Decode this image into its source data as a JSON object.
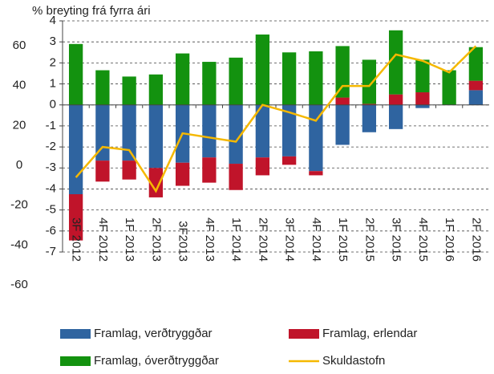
{
  "chart_data": {
    "type": "bar",
    "stacked": true,
    "title": "% breyting frá fyrra ári",
    "categories": [
      "3F 2012",
      "4F 2012",
      "1F 2013",
      "2F 2013",
      "3F2013",
      "4F 2013",
      "1F 2014",
      "2F 2014",
      "3F 2014",
      "4F 2014",
      "1F 2015",
      "2F 2015",
      "3F 2015",
      "4F 2015",
      "1F 2016",
      "2F 2016"
    ],
    "series": [
      {
        "name": "Framlag, verðtryggðar",
        "color": "#2f64a0",
        "values": [
          -4.25,
          -2.65,
          -2.65,
          -3.0,
          -2.75,
          -2.5,
          -2.8,
          -2.5,
          -2.45,
          -3.15,
          -1.9,
          -1.3,
          -1.15,
          -0.15,
          0,
          0.7
        ]
      },
      {
        "name": "Framlag, erlendar",
        "color": "#c0142a",
        "values": [
          -2.2,
          -1.0,
          -0.9,
          -1.4,
          -1.1,
          -1.2,
          -1.25,
          -0.85,
          -0.4,
          -0.2,
          0.35,
          0.05,
          0.5,
          0.6,
          0,
          0.45
        ]
      },
      {
        "name": "Framlag, óverðtryggðar",
        "color": "#13920f",
        "values": [
          2.9,
          1.65,
          1.35,
          1.45,
          2.45,
          2.05,
          2.25,
          3.35,
          2.5,
          2.55,
          2.45,
          2.1,
          3.05,
          1.55,
          1.65,
          1.6
        ]
      },
      {
        "name": "Skuldastofn",
        "color": "#f5b800",
        "type": "line",
        "values": [
          -3.45,
          -2.0,
          -2.15,
          -4.1,
          -1.35,
          -1.55,
          -1.75,
          0,
          -0.35,
          -0.75,
          0.9,
          0.9,
          2.4,
          2.1,
          1.55,
          2.8
        ]
      }
    ],
    "ylim": [
      -7,
      4
    ],
    "yticks": [
      4,
      3,
      2,
      1,
      0,
      -1,
      -2,
      -3,
      -4,
      -5,
      -6,
      -7
    ],
    "y2lim": [
      -43.5,
      72.5
    ],
    "y2ticks": [
      60,
      40,
      20,
      0,
      -20,
      -40,
      -60
    ],
    "grid": true,
    "legend": "bottom"
  }
}
